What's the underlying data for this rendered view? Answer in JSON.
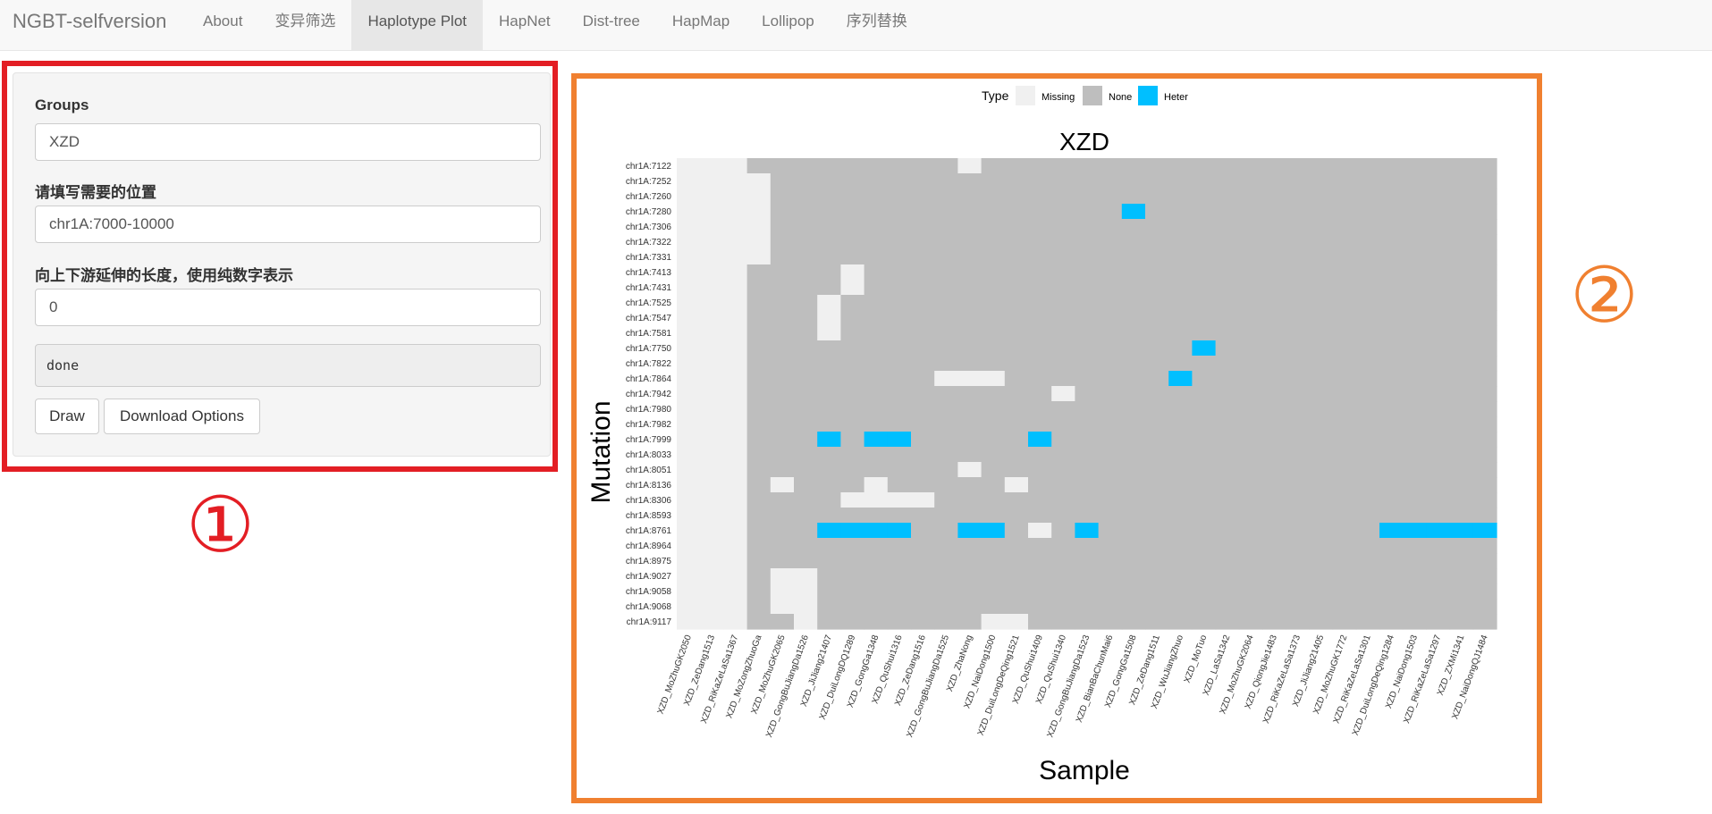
{
  "navbar": {
    "brand": "NGBT-selfversion",
    "tabs": [
      "About",
      "变异筛选",
      "Haplotype Plot",
      "HapNet",
      "Dist-tree",
      "HapMap",
      "Lollipop",
      "序列替换"
    ],
    "active_tab": "Haplotype Plot"
  },
  "form": {
    "groups_label": "Groups",
    "groups_value": "XZD",
    "position_label": "请填写需要的位置",
    "position_value": "chr1A:7000-10000",
    "extend_label": "向上下游延伸的长度，使用纯数字表示",
    "extend_value": "0",
    "status_text": "done",
    "draw_button": "Draw",
    "download_button": "Download Options"
  },
  "annotations": {
    "panel1_number": "①",
    "panel2_number": "②"
  },
  "colors": {
    "missing": "#f0f0f0",
    "none": "#bebebe",
    "heter": "#00bfff",
    "panel1_border": "#e31e24",
    "panel2_border": "#f08030"
  },
  "chart_data": {
    "type": "heatmap",
    "title": "XZD",
    "xlabel": "Sample",
    "ylabel": "Mutation",
    "legend": {
      "title": "Type",
      "position": "top",
      "entries": [
        "Missing",
        "None",
        "Heter"
      ]
    },
    "rows": [
      "chr1A:7122",
      "chr1A:7252",
      "chr1A:7260",
      "chr1A:7280",
      "chr1A:7306",
      "chr1A:7322",
      "chr1A:7331",
      "chr1A:7413",
      "chr1A:7431",
      "chr1A:7525",
      "chr1A:7547",
      "chr1A:7581",
      "chr1A:7750",
      "chr1A:7822",
      "chr1A:7864",
      "chr1A:7942",
      "chr1A:7980",
      "chr1A:7982",
      "chr1A:7999",
      "chr1A:8033",
      "chr1A:8051",
      "chr1A:8136",
      "chr1A:8306",
      "chr1A:8593",
      "chr1A:8761",
      "chr1A:8964",
      "chr1A:8975",
      "chr1A:9027",
      "chr1A:9058",
      "chr1A:9068",
      "chr1A:9117"
    ],
    "columns": [
      "XZD_MoZhuGK2050",
      "XZD_ZeDang1513",
      "XZD_RiKaZeLaSa1367",
      "XZD_MoZongZhuoGa",
      "XZD_MoZhuGK2065",
      "XZD_GongBuJiangDa1526",
      "XZD_JiJiang21407",
      "XZD_DuiLongDQ1289",
      "XZD_GongGa1348",
      "XZD_QuShui1316",
      "XZD_ZeDang1516",
      "XZD_GongBuJiangDa1525",
      "XZD_ZhaNong",
      "XZD_NaiDong1500",
      "XZD_DuiLongDeQing1521",
      "XZD_QuShui1409",
      "XZD_QuShui1340",
      "XZD_GongBuJiangDa1523",
      "XZD_BianBaChunMai6",
      "XZD_GongGa1508",
      "XZD_ZeDang1511",
      "XZD_WuJiangZhuo",
      "XZD_MoTuo",
      "XZD_LaSa1342",
      "XZD_MoZhuGK2064",
      "XZD_QiongJie1483",
      "XZD_RiKaZeLaSa1373",
      "XZD_JiJiang21405",
      "XZD_MoZhuGK1772",
      "XZD_RiKaZeLaSa1301",
      "XZD_DuiLongDeQing1284",
      "XZD_NaiDong1503",
      "XZD_RiKaZeLaSa1297",
      "XZD_ZXMi1341",
      "XZD_NaiDongQJ1484"
    ],
    "matrix": [
      "MMMNNNNNNNNNMNNNNNNNNNNNNNNNNNNNNNN",
      "MMMMNNNNNNNNNNNNNNNNNNNNNNNNNNNNNNN",
      "MMMMNNNNNNNNNNNNNNNNNNNNNNNNNNNNNNN",
      "MMMMNNNNNNNNNNNNNNNHNNNNNNNNNNNNNNN",
      "MMMMNNNNNNNNNNNNNNNNNNNNNNNNNNNNNNN",
      "MMMMNNNNNNNNNNNNNNNNNNNNNNNNNNNNNNN",
      "MMMMNNNNNNNNNNNNNNNNNNNNNNNNNNNNNNN",
      "MMMNNNNMNNNNNNNNNNNNNNNNNNNNNNNNNNN",
      "MMMNNNNMNNNNNNNNNNNNNNNNNNNNNNNNNNN",
      "MMMNNNMNNNNNNNNNNNNNNNNNNNNNNNNNNNN",
      "MMMNNNMNNNNNNNNNNNNNNNNNNNNNNNNNNNN",
      "MMMNNNMNNNNNNNNNNNNNNNNNNNNNNNNNNNN",
      "MMMNNNNNNNNNNNNNNNNNNNHNNNNNNNNNNNN",
      "MMMNNNNNNNNNNNNNNNNNNNNNNNNNNNNNNNN",
      "MMMNNNNNNNNMMMNNNNNNNHNNNNNNNNNNNNN",
      "MMMNNNNNNNNNNNNNMNNNNNNNNNNNNNNNNNN",
      "MMMNNNNNNNNNNNNNNNNNNNNNNNNNNNNNNNN",
      "MMMNNNNNNNNNNNNNNNNNNNNNNNNNNNNNNNN",
      "MMMNNNHNHHNNNNNHNNNNNNNNNNNNNNNNNNN",
      "MMMNNNNNNNNNNNNNNNNNNNNNNNNNNNNNNNN",
      "MMMNNNNNNNNNMNNNNNNNNNNNNNNNNNNNNNN",
      "MMMNMNNNMNNNNNMNNNNNNNNNNNNNNNNNNNN",
      "MMMNNNNMMMMNNNNNNNNNNNNNNNNNNNNNNNN",
      "MMMNNNNNNNNNNNNNNNNNNNNNNNNNNNNNNNN",
      "MMMNNNHHHHNNHHNMNHNNNNNNNNNNNNHHHHH",
      "MMMNNNNNNNNNNNNNNNNNNNNNNNNNNNNNNNN",
      "MMMNNNNNNNNNNNNNNNNNNNNNNNNNNNNNNNN",
      "MMMNMMNNNNNNNNNNNNNNNNNNNNNNNNNNNNN",
      "MMMNMMNNNNNNNNNNNNNNNNNNNNNNNNNNNNN",
      "MMMNMMNNNNNNNNNNNNNNNNNNNNNNNNNNNNN",
      "MMMNNMNNNNNNNMMNNNNNNNNNNNNNNNNNNNN"
    ],
    "matrix_codes": {
      "M": "Missing",
      "N": "None",
      "H": "Heter"
    }
  }
}
